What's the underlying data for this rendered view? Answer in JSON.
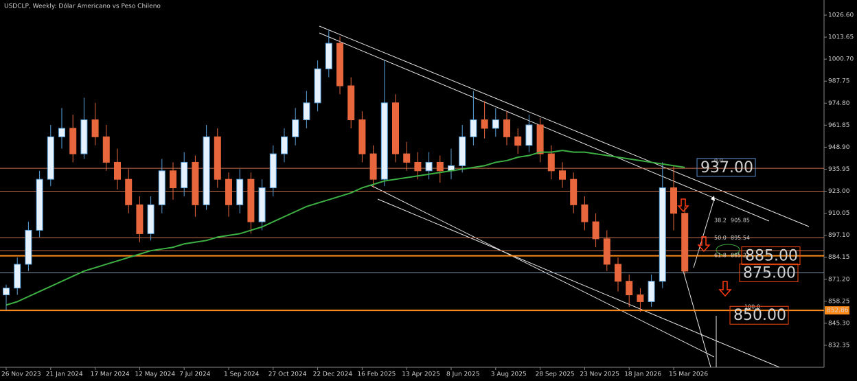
{
  "chart_data": {
    "type": "candlestick",
    "title": "USDCLP, Weekly:  Dólar Americano vs Peso Chileno",
    "open": [
      862,
      866,
      880,
      900,
      930,
      955,
      960,
      945,
      965,
      955,
      940,
      930,
      915,
      898,
      915,
      935,
      925,
      940,
      915,
      955,
      930,
      915,
      930,
      905,
      925,
      945,
      955,
      965,
      975,
      995,
      1010,
      985,
      965,
      945,
      930,
      975,
      945,
      940,
      935,
      940,
      935,
      938,
      955,
      965,
      960,
      965,
      955,
      950,
      962,
      945,
      935,
      930,
      915,
      905,
      895,
      880,
      870,
      862,
      858,
      870,
      925,
      910
    ],
    "high": [
      868,
      884,
      905,
      935,
      962,
      972,
      968,
      978,
      975,
      962,
      948,
      936,
      920,
      920,
      942,
      940,
      946,
      944,
      962,
      960,
      934,
      936,
      934,
      930,
      950,
      960,
      972,
      982,
      1000,
      1018,
      1014,
      990,
      970,
      950,
      1000,
      980,
      952,
      946,
      946,
      944,
      948,
      962,
      982,
      976,
      972,
      970,
      960,
      968,
      966,
      950,
      940,
      934,
      920,
      910,
      900,
      884,
      874,
      866,
      874,
      940,
      938,
      914
    ],
    "low": [
      853,
      862,
      876,
      896,
      926,
      948,
      940,
      942,
      950,
      935,
      924,
      910,
      893,
      894,
      910,
      918,
      920,
      908,
      912,
      925,
      908,
      910,
      898,
      900,
      920,
      940,
      950,
      960,
      970,
      990,
      980,
      960,
      940,
      925,
      926,
      940,
      935,
      930,
      930,
      928,
      930,
      934,
      950,
      954,
      955,
      950,
      945,
      946,
      940,
      930,
      925,
      910,
      900,
      890,
      876,
      864,
      855,
      852,
      855,
      866,
      900,
      874
    ],
    "close": [
      866,
      880,
      900,
      930,
      955,
      960,
      945,
      965,
      955,
      940,
      930,
      915,
      898,
      915,
      935,
      925,
      940,
      915,
      955,
      930,
      915,
      930,
      905,
      925,
      945,
      955,
      965,
      975,
      995,
      1010,
      985,
      965,
      945,
      930,
      975,
      945,
      940,
      935,
      940,
      935,
      938,
      955,
      965,
      960,
      965,
      955,
      950,
      962,
      945,
      935,
      930,
      915,
      905,
      895,
      880,
      870,
      862,
      858,
      870,
      925,
      910,
      876
    ],
    "up_color": "#e6f2ff",
    "up_edge": "#5aa0d8",
    "down_color": "#e8673c",
    "ma": {
      "color": "#3cb043",
      "values": [
        856,
        858,
        861,
        864,
        867,
        870,
        873,
        876,
        878,
        880,
        882,
        884,
        886,
        888,
        889,
        890,
        892,
        893,
        894,
        896,
        897,
        898,
        900,
        902,
        905,
        908,
        911,
        914,
        916,
        918,
        920,
        922,
        925,
        927,
        929,
        930,
        931,
        932,
        933,
        934,
        935,
        936,
        937,
        938,
        940,
        941,
        943,
        944,
        946,
        946,
        947,
        946,
        946,
        945,
        944,
        943,
        942,
        941,
        940,
        939,
        938,
        937
      ]
    },
    "xticks": [
      {
        "value": 0,
        "label": "26 Nov 2023"
      },
      {
        "value": 4,
        "label": "21 Jan 2024"
      },
      {
        "value": 8,
        "label": "17 Mar 2024"
      },
      {
        "value": 12,
        "label": "12 May 2024"
      },
      {
        "value": 16,
        "label": "7 Jul 2024"
      },
      {
        "value": 20,
        "label": "1 Sep 2024"
      },
      {
        "value": 24,
        "label": "27 Oct 2024"
      },
      {
        "value": 28,
        "label": "22 Dec 2024"
      },
      {
        "value": 32,
        "label": "16 Feb 2025"
      },
      {
        "value": 36,
        "label": "13 Apr 2025"
      },
      {
        "value": 40,
        "label": "8 Jun 2025"
      },
      {
        "value": 44,
        "label": "3 Aug 2025"
      },
      {
        "value": 48,
        "label": "28 Sep 2025"
      },
      {
        "value": 52,
        "label": "23 Nov 2025"
      },
      {
        "value": 56,
        "label": "18 Jan 2026"
      },
      {
        "value": 60,
        "label": "15 Mar 2026"
      }
    ],
    "ylim": [
      819.4,
      1035.5
    ],
    "yticks": [
      {
        "value": 1026.6,
        "label": "1026.60"
      },
      {
        "value": 1013.65,
        "label": "1013.65"
      },
      {
        "value": 1000.7,
        "label": "1000.70"
      },
      {
        "value": 987.75,
        "label": "987.75"
      },
      {
        "value": 974.8,
        "label": "974.80"
      },
      {
        "value": 961.85,
        "label": "961.85"
      },
      {
        "value": 948.9,
        "label": "948.90"
      },
      {
        "value": 935.95,
        "label": "935.95"
      },
      {
        "value": 923,
        "label": "923.00"
      },
      {
        "value": 910.05,
        "label": "910.05"
      },
      {
        "value": 897.1,
        "label": "897.10"
      },
      {
        "value": 884.15,
        "label": "884.15"
      },
      {
        "value": 871.2,
        "label": "871.20"
      },
      {
        "value": 858.25,
        "label": "858.25"
      },
      {
        "value": 845.3,
        "label": "845.30"
      },
      {
        "value": 832.35,
        "label": "832.35"
      }
    ],
    "levels": [
      {
        "price": 923,
        "color": "#c8704a",
        "width": 1
      },
      {
        "price": 936.5,
        "color": "#c8704a",
        "width": 1
      },
      {
        "price": 895.54,
        "color": "#c8704a",
        "width": 1
      },
      {
        "price": 888,
        "color": "#c8704a",
        "width": 1
      },
      {
        "price": 885,
        "color": "#ff8c1a",
        "width": 2
      },
      {
        "price": 875,
        "color": "#8899aa",
        "width": 1
      },
      {
        "price": 852.86,
        "color": "#ff8c1a",
        "width": 2
      }
    ],
    "price_tag": 852.86,
    "annotations": [
      {
        "value": 937,
        "label": "937.00",
        "color": "#5a8fd0"
      },
      {
        "value": 885,
        "label": "885.00",
        "color": "#ff4a10"
      },
      {
        "value": 875,
        "label": "875.00",
        "color": "#ff4a10"
      },
      {
        "value": 850,
        "label": "850.00",
        "color": "#ff4a10"
      }
    ],
    "fib": [
      {
        "ratio": "0.0",
        "price": 941
      },
      {
        "ratio": "38.2",
        "price": 905.85
      },
      {
        "ratio": "50.0",
        "price": 895.54
      },
      {
        "ratio": "61.8",
        "price": 885.23
      },
      {
        "ratio": "100.0",
        "price": 855
      }
    ]
  }
}
